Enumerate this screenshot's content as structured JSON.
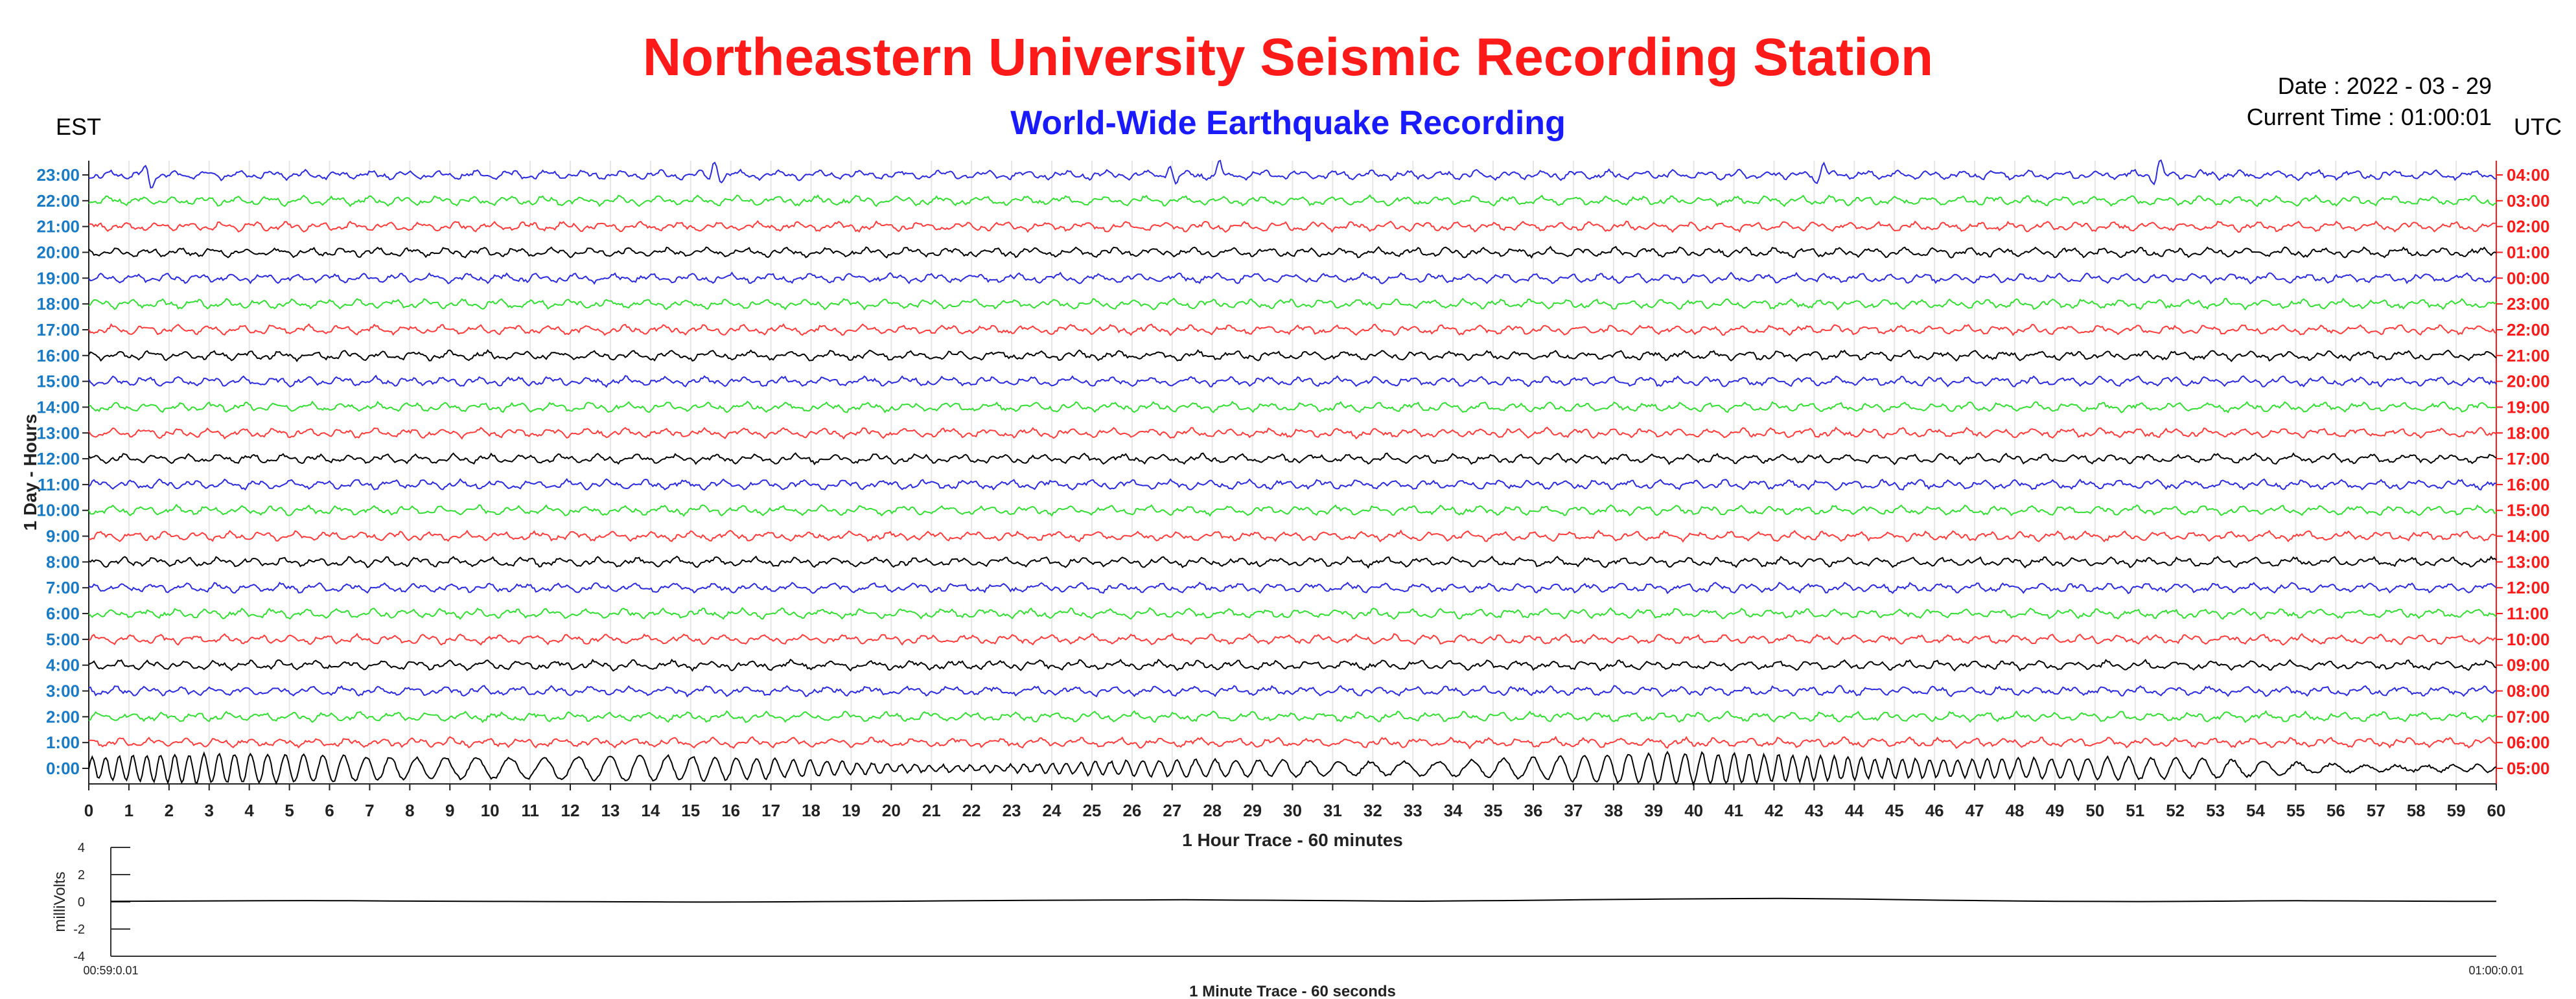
{
  "header": {
    "title": "Northeastern University Seismic Recording Station",
    "subtitle": "World-Wide Earthquake Recording",
    "timezone_left": "EST",
    "timezone_right": "UTC",
    "date": "Date : 2022 - 03 - 29",
    "current_time": "Current Time : 01:00:01"
  },
  "colors": {
    "title": "#ff1a1a",
    "subtitle": "#1a1aff",
    "est_labels": "#1a7ac4",
    "utc_labels": "#ff1a1a",
    "trace_cycle": [
      "#000000",
      "#ff3b3b",
      "#33dd33",
      "#2b2bdd"
    ]
  },
  "chart_data": [
    {
      "type": "line",
      "name": "hourly-helicorder",
      "xlabel": "1 Hour Trace - 60 minutes",
      "ylabel": "1 Day - Hours",
      "xlim": [
        0,
        60
      ],
      "x_ticks": [
        "0",
        "1",
        "2",
        "3",
        "4",
        "5",
        "6",
        "7",
        "8",
        "9",
        "10",
        "11",
        "12",
        "13",
        "14",
        "15",
        "16",
        "17",
        "18",
        "19",
        "20",
        "21",
        "22",
        "23",
        "24",
        "25",
        "26",
        "27",
        "28",
        "29",
        "30",
        "31",
        "32",
        "33",
        "34",
        "35",
        "36",
        "37",
        "38",
        "39",
        "40",
        "41",
        "42",
        "43",
        "44",
        "45",
        "46",
        "47",
        "48",
        "49",
        "50",
        "51",
        "52",
        "53",
        "54",
        "55",
        "56",
        "57",
        "58",
        "59",
        "60"
      ],
      "est_labels": [
        "0:00",
        "1:00",
        "2:00",
        "3:00",
        "4:00",
        "5:00",
        "6:00",
        "7:00",
        "8:00",
        "9:00",
        "10:00",
        "11:00",
        "12:00",
        "13:00",
        "14:00",
        "15:00",
        "16:00",
        "17:00",
        "18:00",
        "19:00",
        "20:00",
        "21:00",
        "22:00",
        "23:00"
      ],
      "utc_labels": [
        "05:00",
        "06:00",
        "07:00",
        "08:00",
        "09:00",
        "10:00",
        "11:00",
        "12:00",
        "13:00",
        "14:00",
        "15:00",
        "16:00",
        "17:00",
        "18:00",
        "19:00",
        "20:00",
        "21:00",
        "22:00",
        "23:00",
        "00:00",
        "01:00",
        "02:00",
        "03:00",
        "04:00"
      ],
      "grid": "vertical-minute-lines",
      "traces": [
        {
          "hour": 0,
          "color": "#000000",
          "activity": "strong-oscillation"
        },
        {
          "hour": 1,
          "color": "#ff3b3b",
          "activity": "background-noise"
        },
        {
          "hour": 2,
          "color": "#33dd33",
          "activity": "background-noise"
        },
        {
          "hour": 3,
          "color": "#2b2bdd",
          "activity": "background-noise"
        },
        {
          "hour": 4,
          "color": "#000000",
          "activity": "background-noise"
        },
        {
          "hour": 5,
          "color": "#ff3b3b",
          "activity": "background-noise"
        },
        {
          "hour": 6,
          "color": "#33dd33",
          "activity": "background-noise"
        },
        {
          "hour": 7,
          "color": "#2b2bdd",
          "activity": "background-noise"
        },
        {
          "hour": 8,
          "color": "#000000",
          "activity": "background-noise"
        },
        {
          "hour": 9,
          "color": "#ff3b3b",
          "activity": "background-noise"
        },
        {
          "hour": 10,
          "color": "#33dd33",
          "activity": "background-noise"
        },
        {
          "hour": 11,
          "color": "#2b2bdd",
          "activity": "background-noise"
        },
        {
          "hour": 12,
          "color": "#000000",
          "activity": "background-noise"
        },
        {
          "hour": 13,
          "color": "#ff3b3b",
          "activity": "background-noise"
        },
        {
          "hour": 14,
          "color": "#33dd33",
          "activity": "background-noise"
        },
        {
          "hour": 15,
          "color": "#2b2bdd",
          "activity": "background-noise"
        },
        {
          "hour": 16,
          "color": "#000000",
          "activity": "background-noise"
        },
        {
          "hour": 17,
          "color": "#ff3b3b",
          "activity": "background-noise"
        },
        {
          "hour": 18,
          "color": "#33dd33",
          "activity": "background-noise"
        },
        {
          "hour": 19,
          "color": "#2b2bdd",
          "activity": "background-noise"
        },
        {
          "hour": 20,
          "color": "#000000",
          "activity": "background-noise"
        },
        {
          "hour": 21,
          "color": "#ff3b3b",
          "activity": "background-noise"
        },
        {
          "hour": 22,
          "color": "#33dd33",
          "activity": "background-noise"
        },
        {
          "hour": 23,
          "color": "#2b2bdd",
          "activity": "spiky-events"
        }
      ]
    },
    {
      "type": "line",
      "name": "minute-trace",
      "xlabel": "1 Minute Trace  - 60 seconds",
      "ylabel": "milliVolts",
      "ylim": [
        -4,
        4
      ],
      "y_ticks": [
        "4",
        "2",
        "0",
        "-2",
        "-4"
      ],
      "x_start_label": "00:59:0.01",
      "x_end_label": "01:00:0.01",
      "values_mV": [
        0.04,
        0.05,
        0.06,
        0.07,
        0.08,
        0.09,
        0.08,
        0.06,
        0.05,
        0.04,
        0.03,
        0.02,
        0.01,
        0.0,
        -0.01,
        -0.02,
        -0.01,
        0.0,
        0.02,
        0.03,
        0.05,
        0.07,
        0.09,
        0.11,
        0.12,
        0.13,
        0.14,
        0.15,
        0.13,
        0.12,
        0.1,
        0.08,
        0.06,
        0.05,
        0.07,
        0.09,
        0.12,
        0.15,
        0.18,
        0.2,
        0.22,
        0.24,
        0.25,
        0.23,
        0.2,
        0.16,
        0.12,
        0.09,
        0.06,
        0.04,
        0.03,
        0.02,
        0.03,
        0.05,
        0.07,
        0.08,
        0.07,
        0.06,
        0.05,
        0.04,
        0.04
      ]
    }
  ]
}
